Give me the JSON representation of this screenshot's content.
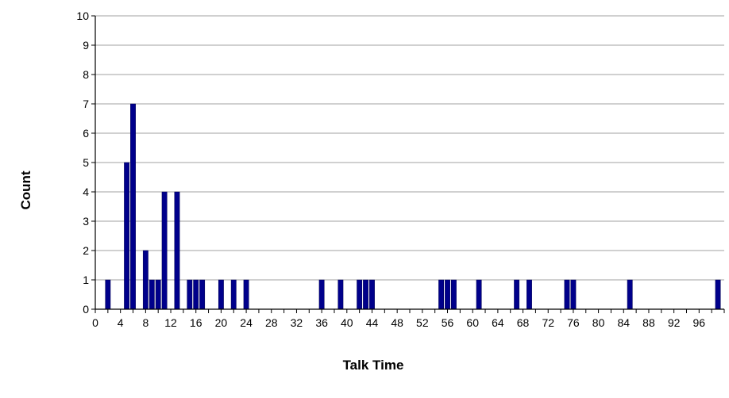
{
  "chart_data": {
    "type": "bar",
    "title": "",
    "xlabel": "Talk Time",
    "ylabel": "Count",
    "xlim": [
      0,
      100
    ],
    "ylim": [
      0,
      10
    ],
    "grid": true,
    "bar_color": "#00008b",
    "x_ticks": [
      0,
      4,
      8,
      12,
      16,
      20,
      24,
      28,
      32,
      36,
      40,
      44,
      48,
      52,
      56,
      60,
      64,
      68,
      72,
      76,
      80,
      84,
      88,
      92,
      96
    ],
    "y_ticks": [
      0,
      1,
      2,
      3,
      4,
      5,
      6,
      7,
      8,
      9,
      10
    ],
    "x": [
      2,
      5,
      6,
      8,
      9,
      10,
      11,
      13,
      15,
      16,
      17,
      20,
      22,
      24,
      36,
      39,
      42,
      43,
      44,
      55,
      56,
      57,
      61,
      67,
      69,
      75,
      76,
      85,
      99
    ],
    "values": [
      1,
      5,
      7,
      2,
      1,
      1,
      4,
      4,
      1,
      1,
      1,
      1,
      1,
      1,
      1,
      1,
      1,
      1,
      1,
      1,
      1,
      1,
      1,
      1,
      1,
      1,
      1,
      1,
      1
    ]
  }
}
